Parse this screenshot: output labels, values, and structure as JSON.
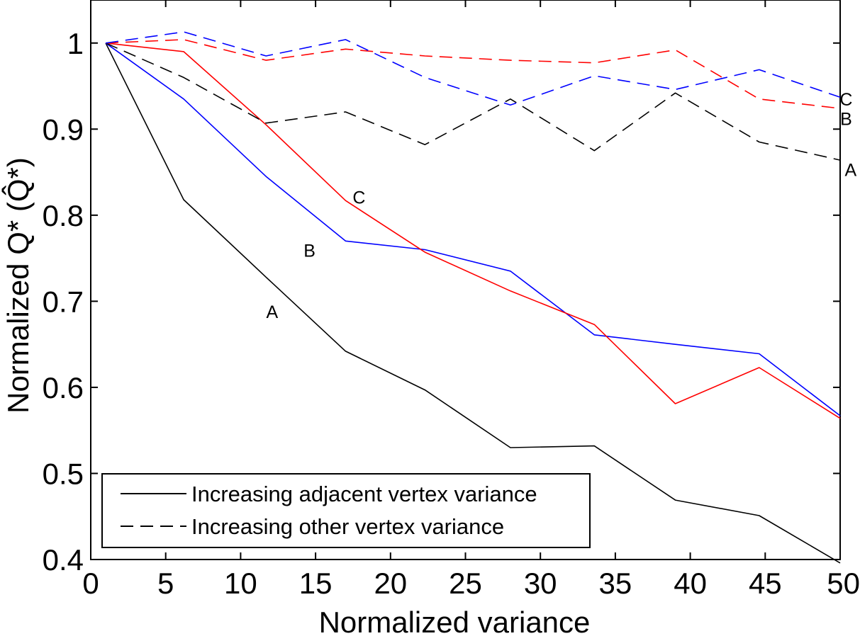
{
  "chart_data": {
    "type": "line",
    "title": "",
    "xlabel": "Normalized variance",
    "ylabel": "Normalized Q* (Q̂*)",
    "xlim": [
      0,
      50
    ],
    "ylim": [
      0.4,
      1.05
    ],
    "xticks": [
      0,
      5,
      10,
      15,
      20,
      25,
      30,
      35,
      40,
      45,
      50
    ],
    "yticks": [
      0.4,
      0.5,
      0.6,
      0.7,
      0.8,
      0.9,
      1
    ],
    "ytick_labels": [
      "0.4",
      "0.5",
      "0.6",
      "0.7",
      "0.8",
      "0.9",
      "1"
    ],
    "grid": false,
    "legend": {
      "placement": "bottom-left",
      "entries": [
        {
          "label": "Increasing adjacent vertex variance",
          "style": "solid"
        },
        {
          "label": "Increasing other vertex variance",
          "style": "dashed"
        }
      ]
    },
    "series": [
      {
        "id": "solid-black",
        "color": "#000000",
        "dash": "solid",
        "label": "A",
        "x": [
          1,
          6.2,
          11.7,
          17,
          22.3,
          28,
          33.6,
          39,
          44.6,
          50
        ],
        "y": [
          1,
          0.818,
          0.728,
          0.642,
          0.597,
          0.53,
          0.532,
          0.469,
          0.451,
          0.396
        ]
      },
      {
        "id": "solid-blue",
        "color": "#0000ff",
        "dash": "solid",
        "label": "B",
        "x": [
          1,
          6.2,
          11.7,
          17,
          22.3,
          28,
          33.6,
          39,
          44.6,
          50
        ],
        "y": [
          1,
          0.935,
          0.845,
          0.77,
          0.76,
          0.735,
          0.661,
          0.65,
          0.639,
          0.567
        ]
      },
      {
        "id": "solid-red",
        "color": "#ff0000",
        "dash": "solid",
        "label": "C",
        "x": [
          1,
          6.2,
          11.7,
          17,
          22.3,
          28,
          33.6,
          39,
          44.6,
          50
        ],
        "y": [
          1,
          0.99,
          0.905,
          0.817,
          0.757,
          0.712,
          0.673,
          0.581,
          0.623,
          0.564
        ]
      },
      {
        "id": "dashed-black",
        "color": "#000000",
        "dash": "dashed",
        "label": "A",
        "x": [
          1,
          6.2,
          11.7,
          17,
          22.3,
          28,
          33.6,
          39,
          44.6,
          50
        ],
        "y": [
          1,
          0.96,
          0.907,
          0.92,
          0.882,
          0.935,
          0.875,
          0.942,
          0.885,
          0.864
        ]
      },
      {
        "id": "dashed-red",
        "color": "#ff0000",
        "dash": "dashed",
        "label": "B",
        "x": [
          1,
          6.2,
          11.7,
          17,
          22.3,
          28,
          33.6,
          39,
          44.6,
          50
        ],
        "y": [
          1,
          1.004,
          0.98,
          0.993,
          0.985,
          0.98,
          0.977,
          0.992,
          0.935,
          0.924
        ]
      },
      {
        "id": "dashed-blue",
        "color": "#0000ff",
        "dash": "dashed",
        "label": "C",
        "x": [
          1,
          6.2,
          11.7,
          17,
          22.3,
          28,
          33.6,
          39,
          44.6,
          50
        ],
        "y": [
          1,
          1.013,
          0.985,
          1.004,
          0.96,
          0.928,
          0.962,
          0.946,
          0.969,
          0.937
        ]
      }
    ],
    "annotations": [
      {
        "text": "A",
        "x": 12.1,
        "y": 0.688
      },
      {
        "text": "B",
        "x": 14.6,
        "y": 0.759
      },
      {
        "text": "C",
        "x": 17.9,
        "y": 0.821
      },
      {
        "text": "C",
        "x": 50.4,
        "y": 0.935
      },
      {
        "text": "B",
        "x": 50.4,
        "y": 0.912
      },
      {
        "text": "A",
        "x": 50.7,
        "y": 0.853
      }
    ]
  }
}
